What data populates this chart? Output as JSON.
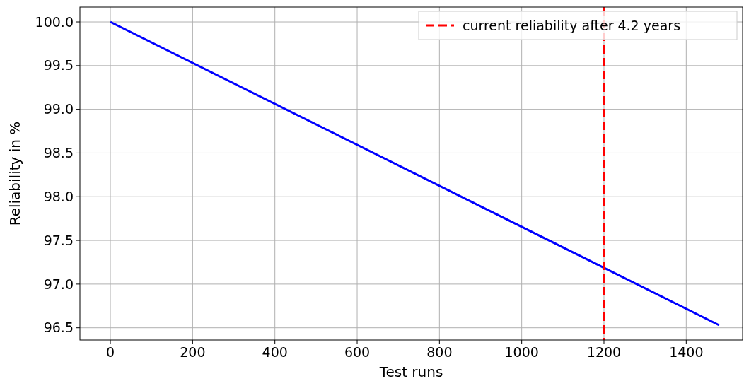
{
  "chart_data": {
    "type": "line",
    "xlabel": "Test runs",
    "ylabel": "Reliability in %",
    "series": [
      {
        "color": "#0000ff",
        "x": [
          0,
          1480
        ],
        "values": [
          100.0,
          96.53
        ]
      }
    ],
    "xlim": [
      -74,
      1537
    ],
    "xticks": [
      0,
      200,
      400,
      600,
      800,
      1000,
      1200,
      1400
    ],
    "ylim": [
      96.36,
      100.17
    ],
    "yticks": [
      {
        "value": 96.5,
        "label": "96.5"
      },
      {
        "value": 97,
        "label": "97.0"
      },
      {
        "value": 97.5,
        "label": "97.5"
      },
      {
        "value": 98,
        "label": "98.0"
      },
      {
        "value": 98.5,
        "label": "98.5"
      },
      {
        "value": 99,
        "label": "99.0"
      },
      {
        "value": 99.5,
        "label": "99.5"
      },
      {
        "value": 100,
        "label": "100.0"
      }
    ],
    "ref_lines": [
      {
        "axis": "x",
        "value": 1200,
        "label": "current reliability after 4.2 years",
        "color": "#ff0000",
        "line_style": "dashed"
      }
    ],
    "grid": true,
    "legend": "top right",
    "line_style": "solid",
    "marker": "none"
  }
}
